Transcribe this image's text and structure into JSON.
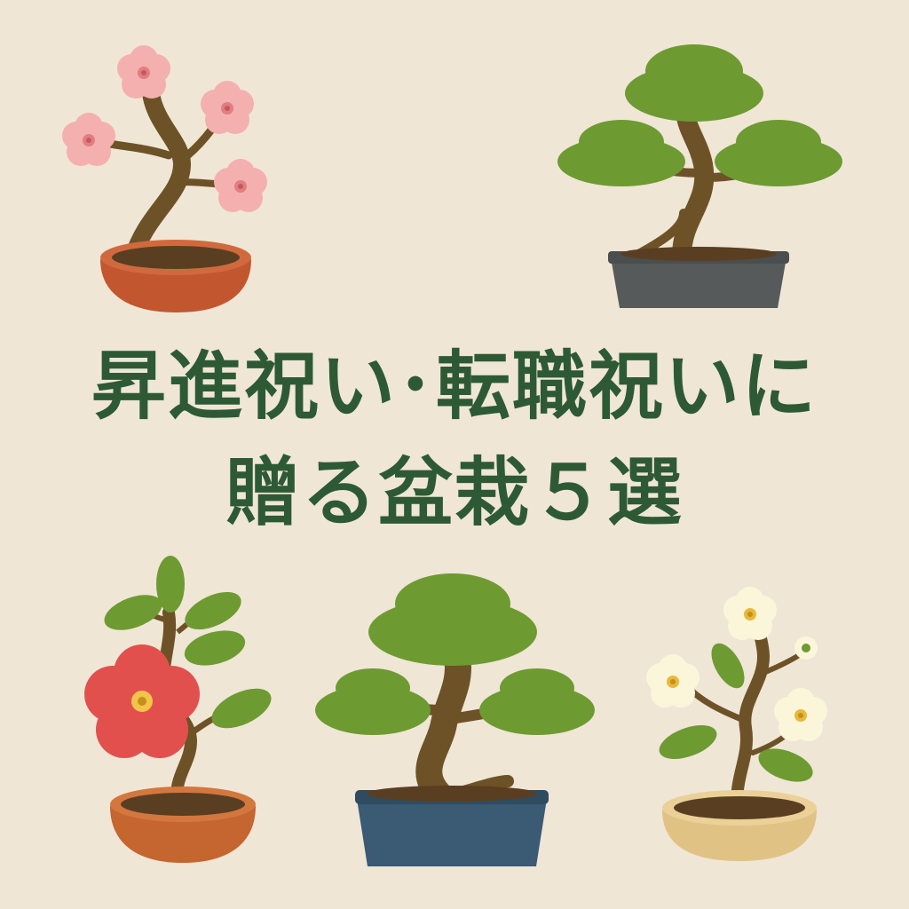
{
  "title": {
    "line1": "昇進祝い･転職祝いに",
    "line2": "贈る盆栽５選"
  },
  "colors": {
    "background": "#efe6d6",
    "title": "#2d5a34",
    "foliage": "#6e9a32",
    "trunk": "#6e5227",
    "soil": "#5a3e22"
  },
  "icons": [
    "cherry-blossom-bonsai-icon",
    "pine-bonsai-icon",
    "camellia-bonsai-icon",
    "large-pine-bonsai-icon",
    "white-plum-bonsai-icon"
  ]
}
